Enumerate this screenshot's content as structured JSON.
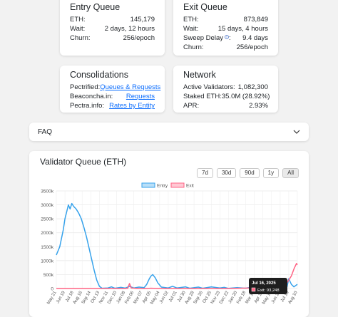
{
  "entry_queue": {
    "title": "Entry Queue",
    "rows": [
      {
        "label": "ETH:",
        "value": "145,179"
      },
      {
        "label": "Wait:",
        "value": "2 days, 12 hours"
      },
      {
        "label": "Churn:",
        "value": "256/epoch"
      }
    ]
  },
  "exit_queue": {
    "title": "Exit Queue",
    "rows": [
      {
        "label": "ETH:",
        "value": "873,849"
      },
      {
        "label": "Wait:",
        "value": "15 days, 4 hours"
      },
      {
        "label": "Sweep Delay",
        "value": "9.4 days"
      },
      {
        "label": "Churn:",
        "value": "256/epoch"
      }
    ]
  },
  "consolidations": {
    "title": "Consolidations",
    "rows": [
      {
        "label": "Pectrified:",
        "value": "Queues & Requests"
      },
      {
        "label": "Beaconcha.in:",
        "value": "Requests"
      },
      {
        "label": "Pectra.info:",
        "value": "Rates by Entity"
      }
    ]
  },
  "network": {
    "title": "Network",
    "rows": [
      {
        "label": "Active Validators:",
        "value": "1,082,300"
      },
      {
        "label": "Staked ETH:",
        "value": "35.0M (28.92%)"
      },
      {
        "label": "APR:",
        "value": "2.93%"
      }
    ]
  },
  "faq": {
    "label": "FAQ"
  },
  "chart": {
    "title": "Validator Queue (ETH)",
    "ranges": [
      "7d",
      "30d",
      "90d",
      "1y",
      "All"
    ],
    "active_range": "All",
    "tooltip": {
      "title": "Jul 16, 2025",
      "line": "Exit: 93,248"
    }
  },
  "colors": {
    "entry": "#36a2eb",
    "exit": "#ff6384"
  },
  "chart_data": {
    "type": "line",
    "legend_placement": "top-center",
    "grid": true,
    "ylim": [
      0,
      3500000
    ],
    "y_ticks": [
      "0",
      "500k",
      "1000k",
      "1500k",
      "2000k",
      "2500k",
      "3000k",
      "3500k"
    ],
    "x_ticks": [
      "May 21",
      "Jun 19",
      "Jul 18",
      "Aug 16",
      "Sep 14",
      "Oct 13",
      "Nov 11",
      "Dec 10",
      "Jan 08",
      "Feb 06",
      "Mar 07",
      "Apr 05",
      "May 04",
      "Jun 02",
      "Jul 01",
      "Jul 30",
      "Aug 28",
      "Sep 26",
      "Oct 25",
      "Nov 23",
      "Dec 22",
      "Jan 20",
      "Feb 18",
      "Mar 19",
      "Apr 17",
      "May 16",
      "Jun 14",
      "Jul 13",
      "Aug 10"
    ],
    "series": [
      {
        "name": "Entry",
        "points": [
          [
            0,
            1200000
          ],
          [
            0.4,
            1500000
          ],
          [
            0.8,
            2100000
          ],
          [
            1.0,
            2500000
          ],
          [
            1.2,
            2750000
          ],
          [
            1.4,
            3000000
          ],
          [
            1.6,
            2850000
          ],
          [
            1.8,
            3050000
          ],
          [
            2.0,
            2950000
          ],
          [
            2.3,
            2850000
          ],
          [
            2.6,
            2700000
          ],
          [
            2.9,
            2500000
          ],
          [
            3.2,
            2200000
          ],
          [
            3.5,
            1850000
          ],
          [
            3.8,
            1450000
          ],
          [
            4.1,
            1050000
          ],
          [
            4.4,
            650000
          ],
          [
            4.7,
            300000
          ],
          [
            5.0,
            80000
          ],
          [
            5.3,
            10000
          ],
          [
            6.0,
            20000
          ],
          [
            6.4,
            60000
          ],
          [
            6.8,
            10000
          ],
          [
            7.5,
            40000
          ],
          [
            8.0,
            15000
          ],
          [
            8.5,
            80000
          ],
          [
            9.0,
            20000
          ],
          [
            9.6,
            50000
          ],
          [
            10.2,
            30000
          ],
          [
            10.5,
            150000
          ],
          [
            10.8,
            350000
          ],
          [
            11.0,
            450000
          ],
          [
            11.2,
            500000
          ],
          [
            11.5,
            380000
          ],
          [
            11.8,
            200000
          ],
          [
            12.2,
            50000
          ],
          [
            13.0,
            20000
          ],
          [
            13.5,
            80000
          ],
          [
            14.0,
            20000
          ],
          [
            15.0,
            60000
          ],
          [
            15.5,
            10000
          ],
          [
            16.5,
            50000
          ],
          [
            17.0,
            10000
          ],
          [
            18.0,
            60000
          ],
          [
            19.0,
            20000
          ],
          [
            19.5,
            40000
          ],
          [
            20.0,
            5000
          ],
          [
            21.0,
            30000
          ],
          [
            22.0,
            10000
          ],
          [
            22.5,
            40000
          ],
          [
            23.5,
            20000
          ],
          [
            24.2,
            50000
          ],
          [
            25.0,
            30000
          ],
          [
            25.5,
            250000
          ],
          [
            26.0,
            100000
          ],
          [
            26.5,
            300000
          ],
          [
            26.8,
            50000
          ],
          [
            27.0,
            350000
          ],
          [
            27.3,
            150000
          ],
          [
            27.6,
            60000
          ],
          [
            28.0,
            150000
          ]
        ]
      },
      {
        "name": "Exit",
        "points": [
          [
            0,
            0
          ],
          [
            8.0,
            0
          ],
          [
            8.3,
            10000
          ],
          [
            8.5,
            180000
          ],
          [
            8.7,
            20000
          ],
          [
            9.5,
            0
          ],
          [
            10.5,
            0
          ],
          [
            11.0,
            10000
          ],
          [
            12.0,
            0
          ],
          [
            20.0,
            0
          ],
          [
            24.5,
            30000
          ],
          [
            25.0,
            60000
          ],
          [
            25.5,
            20000
          ],
          [
            26.0,
            120000
          ],
          [
            26.5,
            80000
          ],
          [
            27.0,
            300000
          ],
          [
            27.3,
            450000
          ],
          [
            27.6,
            700000
          ],
          [
            27.9,
            900000
          ],
          [
            28.0,
            850000
          ]
        ]
      }
    ]
  }
}
